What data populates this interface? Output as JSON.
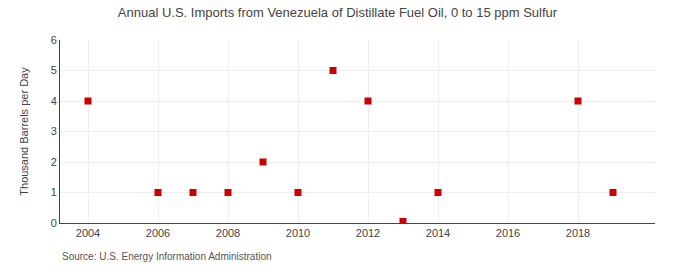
{
  "chart_data": {
    "type": "scatter",
    "title": "Annual U.S. Imports from Venezuela of Distillate Fuel Oil, 0 to 15 ppm Sulfur",
    "ylabel": "Thousand Barrels per Day",
    "source": "Source: U.S. Energy Information Administration",
    "x": [
      2004,
      2006,
      2007,
      2008,
      2009,
      2010,
      2011,
      2012,
      2013,
      2014,
      2018,
      2019
    ],
    "values": [
      4,
      1,
      1,
      1,
      2,
      1,
      5,
      4,
      0.05,
      1,
      4,
      1
    ],
    "color": "#cc0000",
    "marker": "square",
    "xlim": [
      2003.2,
      2020.2
    ],
    "ylim": [
      0,
      6
    ],
    "xticks": [
      2004,
      2006,
      2008,
      2010,
      2012,
      2014,
      2016,
      2018
    ],
    "yticks": [
      0,
      1,
      2,
      3,
      4,
      5,
      6
    ],
    "grid": true
  }
}
